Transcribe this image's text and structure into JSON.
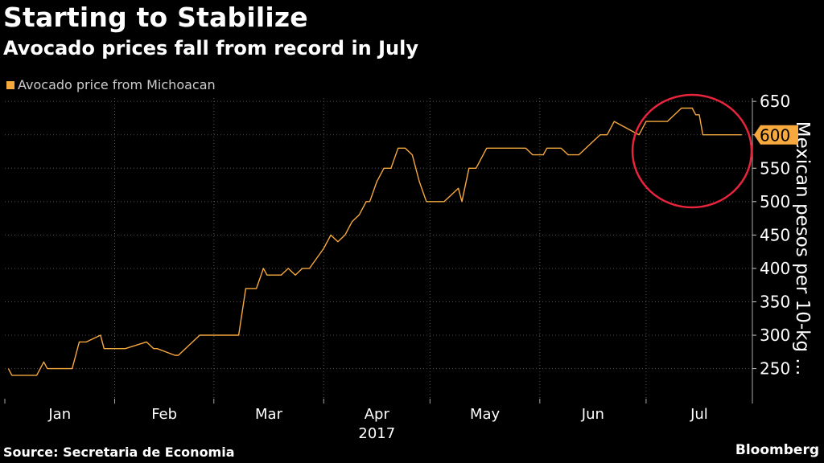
{
  "header": {
    "title": "Starting to Stabilize",
    "subtitle": "Avocado prices fall from record in July"
  },
  "footer": {
    "source": "Source: Secretaria de Economia",
    "brand": "Bloomberg"
  },
  "colors": {
    "background": "#000000",
    "series": "#f7a93d",
    "highlight_circle": "#e8243c",
    "grid": "#555555",
    "text": "#ffffff"
  },
  "chart_data": {
    "type": "line",
    "year": "2017",
    "xlabel": "",
    "ylabel": "Mexican pesos per 10-kg ...",
    "ylim": [
      205,
      655
    ],
    "yticks": [
      250,
      300,
      350,
      400,
      450,
      500,
      550,
      600,
      650
    ],
    "month_labels": [
      "Jan",
      "Feb",
      "Mar",
      "Apr",
      "May",
      "Jun",
      "Jul"
    ],
    "year_label": "2017",
    "legend": {
      "position": "top-left",
      "entries": [
        "Avocado price from Michoacan"
      ]
    },
    "grid": {
      "horizontal": true,
      "vertical": true
    },
    "last_value_label": "600",
    "annotation": "red circle highlighting July peak",
    "series": [
      {
        "name": "Avocado price from Michoacan",
        "x": [
          "2017-01-02",
          "2017-01-03",
          "2017-01-10",
          "2017-01-12",
          "2017-01-13",
          "2017-01-20",
          "2017-01-22",
          "2017-01-24",
          "2017-01-28",
          "2017-01-29",
          "2017-02-01",
          "2017-02-03",
          "2017-02-04",
          "2017-02-10",
          "2017-02-12",
          "2017-02-13",
          "2017-02-18",
          "2017-02-19",
          "2017-02-25",
          "2017-02-26",
          "2017-03-08",
          "2017-03-10",
          "2017-03-13",
          "2017-03-15",
          "2017-03-16",
          "2017-03-20",
          "2017-03-22",
          "2017-03-24",
          "2017-03-26",
          "2017-03-28",
          "2017-04-01",
          "2017-04-03",
          "2017-04-05",
          "2017-04-07",
          "2017-04-09",
          "2017-04-11",
          "2017-04-13",
          "2017-04-14",
          "2017-04-16",
          "2017-04-18",
          "2017-04-20",
          "2017-04-22",
          "2017-04-24",
          "2017-04-26",
          "2017-04-28",
          "2017-04-30",
          "2017-05-04",
          "2017-05-05",
          "2017-05-09",
          "2017-05-10",
          "2017-05-12",
          "2017-05-14",
          "2017-05-17",
          "2017-05-28",
          "2017-05-30",
          "2017-06-01",
          "2017-06-02",
          "2017-06-03",
          "2017-06-07",
          "2017-06-09",
          "2017-06-10",
          "2017-06-12",
          "2017-06-18",
          "2017-06-20",
          "2017-06-22",
          "2017-06-29",
          "2017-07-01",
          "2017-07-03",
          "2017-07-05",
          "2017-07-07",
          "2017-07-11",
          "2017-07-14",
          "2017-07-15",
          "2017-07-16",
          "2017-07-17",
          "2017-07-19",
          "2017-07-21",
          "2017-07-28"
        ],
        "values": [
          250,
          240,
          240,
          260,
          250,
          250,
          290,
          290,
          300,
          280,
          280,
          280,
          280,
          290,
          280,
          280,
          270,
          270,
          300,
          300,
          300,
          370,
          370,
          400,
          390,
          390,
          400,
          390,
          400,
          400,
          430,
          450,
          440,
          450,
          470,
          480,
          500,
          500,
          530,
          550,
          550,
          580,
          580,
          570,
          530,
          500,
          500,
          500,
          520,
          500,
          550,
          550,
          580,
          580,
          570,
          570,
          570,
          580,
          580,
          570,
          570,
          570,
          600,
          600,
          620,
          600,
          620,
          620,
          620,
          620,
          640,
          640,
          630,
          630,
          600,
          600,
          600,
          600
        ]
      }
    ]
  }
}
